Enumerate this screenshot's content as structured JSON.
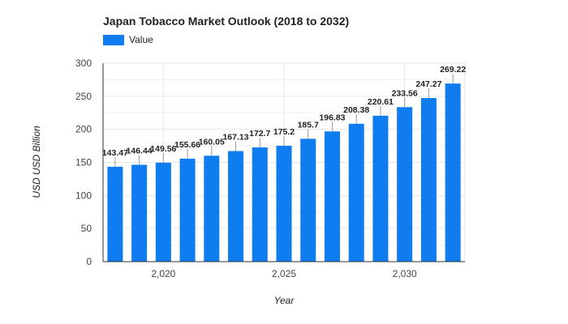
{
  "chart_data": {
    "type": "bar",
    "title": "Japan Tobacco Market Outlook (2018 to 2032)",
    "xlabel": "Year",
    "ylabel": "USD USD Billion",
    "legend": {
      "label": "Value",
      "placement": "top-left"
    },
    "x": [
      2018,
      2019,
      2020,
      2021,
      2022,
      2023,
      2024,
      2025,
      2026,
      2027,
      2028,
      2029,
      2030,
      2031,
      2032
    ],
    "values": [
      143.47,
      146.44,
      149.56,
      155.66,
      160.05,
      167.13,
      172.7,
      175.2,
      185.7,
      196.83,
      208.38,
      220.61,
      233.56,
      247.27,
      269.22
    ],
    "value_labels": [
      "143.47",
      "146.44",
      "149.56",
      "155.66",
      "160.05",
      "167.13",
      "172.7",
      "175.2",
      "185.7",
      "196.83",
      "208.38",
      "220.61",
      "233.56",
      "247.27",
      "269.22"
    ],
    "ylim": [
      0,
      300
    ],
    "yticks": [
      0,
      50,
      100,
      150,
      200,
      250,
      300
    ],
    "xticks": [
      2020,
      2025,
      2030
    ],
    "xtick_labels": [
      "2,020",
      "2,025",
      "2,030"
    ],
    "grid": true,
    "colors": {
      "bar": "#0f7cf0",
      "grid": "#e6e6e6",
      "axis": "#333333",
      "text": "#444444"
    }
  }
}
